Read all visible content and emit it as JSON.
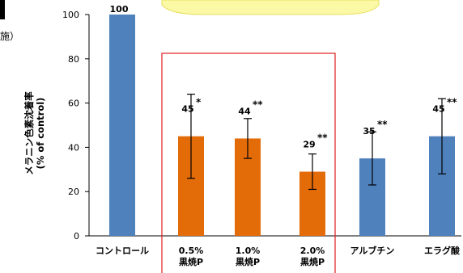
{
  "chart_data": {
    "type": "bar",
    "categories": [
      {
        "label": [
          "コントロール"
        ],
        "value": 100,
        "error": 0,
        "sig": "",
        "color": "#4f81bd"
      },
      {
        "label": [
          "0.5%",
          "黒焼P"
        ],
        "value": 45,
        "error": 19,
        "sig": "*",
        "color": "#e36c09"
      },
      {
        "label": [
          "1.0%",
          "黒焼P"
        ],
        "value": 44,
        "error": 9,
        "sig": "**",
        "color": "#e36c09"
      },
      {
        "label": [
          "2.0%",
          "黒焼P"
        ],
        "value": 29,
        "error": 8,
        "sig": "**",
        "color": "#e36c09"
      },
      {
        "label": [
          "アルブチン"
        ],
        "value": 35,
        "error": 12,
        "sig": "**",
        "color": "#4f81bd"
      },
      {
        "label": [
          "エラグ酸"
        ],
        "value": 45,
        "error": 17,
        "sig": "**",
        "color": "#4f81bd"
      }
    ],
    "ylabel": [
      "メラニン色素沈着率",
      "(% of control)"
    ],
    "ylim": [
      0,
      100
    ],
    "yticks": [
      "0",
      "20",
      "40",
      "60",
      "80",
      "100"
    ],
    "highlight_box_color": "#e02020",
    "grid": false,
    "legend": "none"
  },
  "partial_left_text": "施）"
}
